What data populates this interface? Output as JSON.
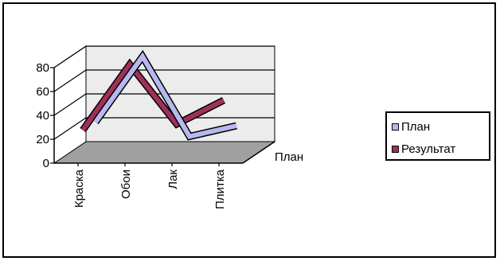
{
  "chart_data": {
    "type": "line",
    "view": "3d",
    "categories": [
      "Краска",
      "Обои",
      "Лак",
      "Плитка"
    ],
    "series": [
      {
        "name": "План",
        "values": [
          25,
          80,
          13,
          22
        ],
        "color": "#b8b8f0"
      },
      {
        "name": "Результат",
        "values": [
          25,
          80,
          30,
          50
        ],
        "color": "#a0305a"
      }
    ],
    "depth_axis_label": "План",
    "yticks": [
      0,
      20,
      40,
      60,
      80
    ],
    "ylim": [
      0,
      80
    ],
    "grid": true,
    "legend_position": "right",
    "colors": {
      "back_wall": "#ececec",
      "floor": "#a0a0a0"
    }
  }
}
